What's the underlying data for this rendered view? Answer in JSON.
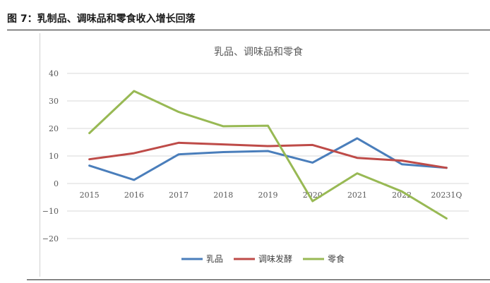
{
  "figure": {
    "caption": "图 7：乳制品、调味品和零食收入增长回落"
  },
  "chart_data": {
    "type": "line",
    "title": "乳品、调味品和零食",
    "categories": [
      "2015",
      "2016",
      "2017",
      "2018",
      "2019",
      "2020",
      "2021",
      "2022",
      "20231Q"
    ],
    "ylim": [
      -20,
      40
    ],
    "yticks": [
      "40",
      "30",
      "20",
      "10",
      "0",
      "−10",
      "−20"
    ],
    "ytick_values": [
      40,
      30,
      20,
      10,
      0,
      -10,
      -20
    ],
    "grid": true,
    "legend": "bottom",
    "series": [
      {
        "name": "乳品",
        "color": "#4a7ebb",
        "values": [
          6.5,
          1.3,
          10.6,
          11.4,
          11.8,
          7.6,
          16.4,
          7.0,
          5.7
        ]
      },
      {
        "name": "调味发酵",
        "color": "#be4b48",
        "values": [
          8.8,
          11.0,
          14.8,
          14.2,
          13.6,
          14.0,
          9.3,
          8.3,
          5.7
        ]
      },
      {
        "name": "零食",
        "color": "#98b954",
        "values": [
          18.3,
          33.6,
          26.0,
          20.8,
          21.0,
          -6.4,
          3.7,
          -2.9,
          -12.7
        ]
      }
    ]
  }
}
